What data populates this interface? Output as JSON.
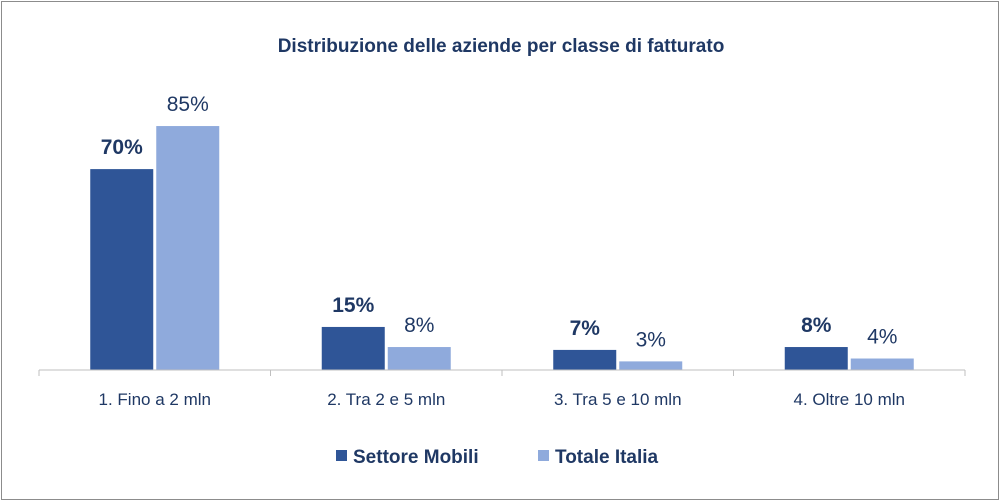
{
  "chart_data": {
    "type": "bar",
    "title": "Distribuzione delle aziende per classe di fatturato",
    "categories": [
      "1. Fino a 2 mln",
      "2. Tra 2 e 5 mln",
      "3. Tra 5 e 10 mln",
      "4. Oltre 10 mln"
    ],
    "series": [
      {
        "name": "Settore Mobili",
        "values": [
          70,
          15,
          7,
          8
        ],
        "labels": [
          "70%",
          "15%",
          "7%",
          "8%"
        ],
        "color": "#2f5597"
      },
      {
        "name": "Totale Italia",
        "values": [
          85,
          8,
          3,
          4
        ],
        "labels": [
          "85%",
          "8%",
          "3%",
          "4%"
        ],
        "color": "#8faadc"
      }
    ],
    "ylim": [
      0,
      100
    ],
    "grid": false,
    "legend_position": "bottom"
  }
}
